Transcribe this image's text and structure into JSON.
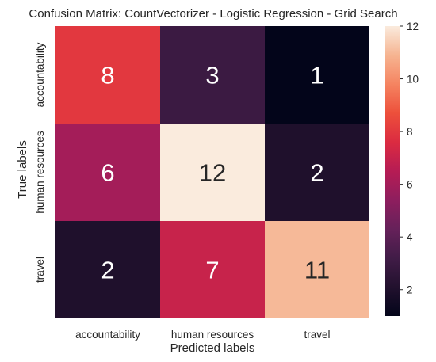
{
  "chart_data": {
    "type": "heatmap",
    "title": "Confusion Matrix: CountVectorizer - Logistic Regression - Grid Search",
    "xlabel": "Predicted labels",
    "ylabel": "True labels",
    "x_categories": [
      "accountability",
      "human resources",
      "travel"
    ],
    "y_categories": [
      "accountability",
      "human resources",
      "travel"
    ],
    "values": [
      [
        8,
        3,
        1
      ],
      [
        6,
        12,
        2
      ],
      [
        2,
        7,
        11
      ]
    ],
    "colorbar": {
      "min": 1,
      "max": 12,
      "ticks": [
        2,
        4,
        6,
        8,
        10,
        12
      ],
      "colormap": "rocket"
    },
    "grid": false
  }
}
